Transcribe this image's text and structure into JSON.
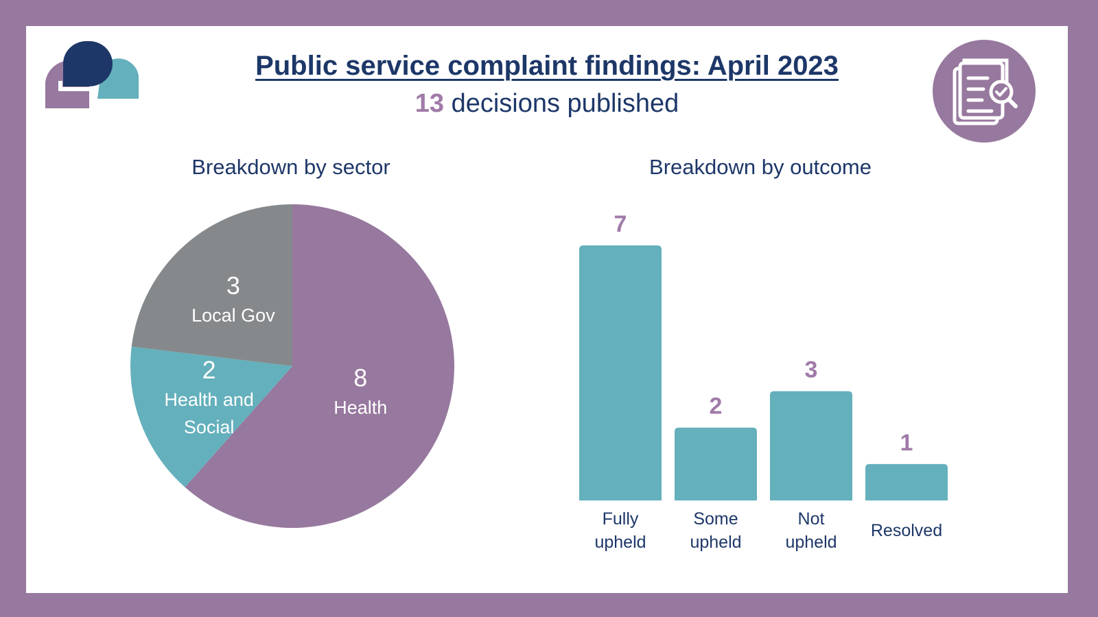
{
  "header": {
    "title": "Public service complaint findings: April 2023",
    "count": "13",
    "subtitle_suffix": " decisions published"
  },
  "icons": {
    "logo": "speech-bubbles-logo",
    "badge": "document-magnifier-icon"
  },
  "colors": {
    "frame": "#97789e",
    "navy": "#1d3768",
    "purple": "#97789e",
    "teal": "#64b0bc",
    "grey": "#85898b",
    "accent_number": "#a07aa8"
  },
  "chart_data": [
    {
      "type": "pie",
      "title": "Breakdown by sector",
      "slices": [
        {
          "label": "Health",
          "value": 8,
          "color": "#97789e"
        },
        {
          "label": "Health and Social",
          "value": 2,
          "color": "#64b0bc"
        },
        {
          "label": "Local Gov",
          "value": 3,
          "color": "#85898b"
        }
      ]
    },
    {
      "type": "bar",
      "title": "Breakdown by outcome",
      "categories": [
        "Fully upheld",
        "Some upheld",
        "Not upheld",
        "Resolved"
      ],
      "values": [
        7,
        2,
        3,
        1
      ],
      "bar_color": "#64b0bc",
      "label_color": "#a07aa8",
      "ylim": [
        0,
        7
      ]
    }
  ]
}
